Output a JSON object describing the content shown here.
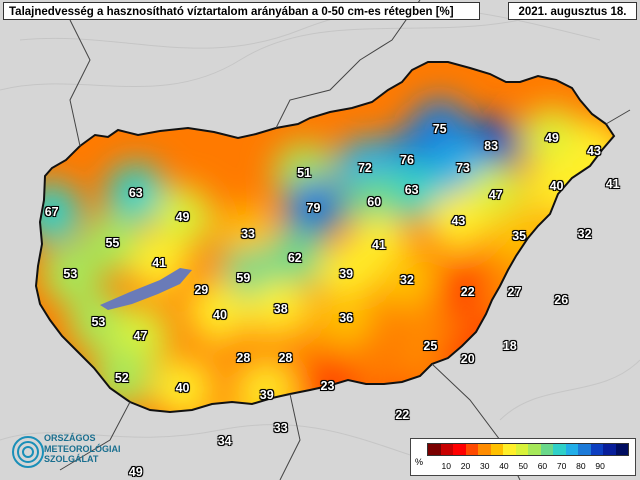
{
  "header": {
    "title": "Talajnedvesség a hasznosítható víztartalom arányában a 0-50 cm-es rétegben [%]",
    "date": "2021. augusztus 18."
  },
  "stations": [
    {
      "label": "75",
      "lon": 20.3,
      "lat": 48.45
    },
    {
      "label": "83",
      "lon": 20.85,
      "lat": 48.25
    },
    {
      "label": "49",
      "lon": 21.5,
      "lat": 48.35
    },
    {
      "label": "43",
      "lon": 21.95,
      "lat": 48.2
    },
    {
      "label": "76",
      "lon": 19.95,
      "lat": 48.1
    },
    {
      "label": "72",
      "lon": 19.5,
      "lat": 48.0
    },
    {
      "label": "73",
      "lon": 20.55,
      "lat": 48.0
    },
    {
      "label": "41",
      "lon": 22.15,
      "lat": 47.82
    },
    {
      "label": "40",
      "lon": 21.55,
      "lat": 47.8
    },
    {
      "label": "51",
      "lon": 18.85,
      "lat": 47.95
    },
    {
      "label": "63",
      "lon": 17.05,
      "lat": 47.72
    },
    {
      "label": "63",
      "lon": 20.0,
      "lat": 47.75
    },
    {
      "label": "47",
      "lon": 20.9,
      "lat": 47.7
    },
    {
      "label": "60",
      "lon": 19.6,
      "lat": 47.62
    },
    {
      "label": "79",
      "lon": 18.95,
      "lat": 47.55
    },
    {
      "label": "67",
      "lon": 16.15,
      "lat": 47.5
    },
    {
      "label": "49",
      "lon": 17.55,
      "lat": 47.45
    },
    {
      "label": "43",
      "lon": 20.5,
      "lat": 47.4
    },
    {
      "label": "33",
      "lon": 18.25,
      "lat": 47.25
    },
    {
      "label": "35",
      "lon": 21.15,
      "lat": 47.23
    },
    {
      "label": "32",
      "lon": 21.85,
      "lat": 47.25
    },
    {
      "label": "55",
      "lon": 16.8,
      "lat": 47.15
    },
    {
      "label": "41",
      "lon": 19.65,
      "lat": 47.13
    },
    {
      "label": "62",
      "lon": 18.75,
      "lat": 46.98
    },
    {
      "label": "41",
      "lon": 17.3,
      "lat": 46.93
    },
    {
      "label": "53",
      "lon": 16.35,
      "lat": 46.8
    },
    {
      "label": "39",
      "lon": 19.3,
      "lat": 46.8
    },
    {
      "label": "59",
      "lon": 18.2,
      "lat": 46.75
    },
    {
      "label": "32",
      "lon": 19.95,
      "lat": 46.73
    },
    {
      "label": "29",
      "lon": 17.75,
      "lat": 46.62
    },
    {
      "label": "22",
      "lon": 20.6,
      "lat": 46.6
    },
    {
      "label": "27",
      "lon": 21.1,
      "lat": 46.6
    },
    {
      "label": "26",
      "lon": 21.6,
      "lat": 46.5
    },
    {
      "label": "38",
      "lon": 18.6,
      "lat": 46.4
    },
    {
      "label": "40",
      "lon": 17.95,
      "lat": 46.33
    },
    {
      "label": "36",
      "lon": 19.3,
      "lat": 46.3
    },
    {
      "label": "53",
      "lon": 16.65,
      "lat": 46.25
    },
    {
      "label": "47",
      "lon": 17.1,
      "lat": 46.1
    },
    {
      "label": "18",
      "lon": 21.05,
      "lat": 45.98
    },
    {
      "label": "25",
      "lon": 20.2,
      "lat": 45.98
    },
    {
      "label": "28",
      "lon": 18.2,
      "lat": 45.85
    },
    {
      "label": "28",
      "lon": 18.65,
      "lat": 45.85
    },
    {
      "label": "20",
      "lon": 20.6,
      "lat": 45.83
    },
    {
      "label": "52",
      "lon": 16.9,
      "lat": 45.62
    },
    {
      "label": "23",
      "lon": 19.1,
      "lat": 45.53
    },
    {
      "label": "40",
      "lon": 17.55,
      "lat": 45.5
    },
    {
      "label": "39",
      "lon": 18.45,
      "lat": 45.42
    },
    {
      "label": "22",
      "lon": 19.9,
      "lat": 45.2
    },
    {
      "label": "33",
      "lon": 18.6,
      "lat": 45.05
    },
    {
      "label": "34",
      "lon": 18.0,
      "lat": 44.9
    },
    {
      "label": "49",
      "lon": 17.05,
      "lat": 44.55
    }
  ],
  "legend": {
    "unit": "%",
    "ticks": [
      "10",
      "20",
      "30",
      "40",
      "50",
      "60",
      "70",
      "80",
      "90"
    ],
    "colors": [
      "#7a0000",
      "#c80000",
      "#ff0000",
      "#ff4a00",
      "#ff8c00",
      "#ffc000",
      "#ffef2a",
      "#d8f23a",
      "#a6e85a",
      "#6ad88a",
      "#2fd0c8",
      "#22aee8",
      "#1d7ad8",
      "#0d3fc0",
      "#081e9a",
      "#000d60"
    ]
  },
  "logo": {
    "line1": "ORSZÁGOS",
    "line2": "METEOROLÓGIAI",
    "line3": "SZOLGÁLAT"
  }
}
